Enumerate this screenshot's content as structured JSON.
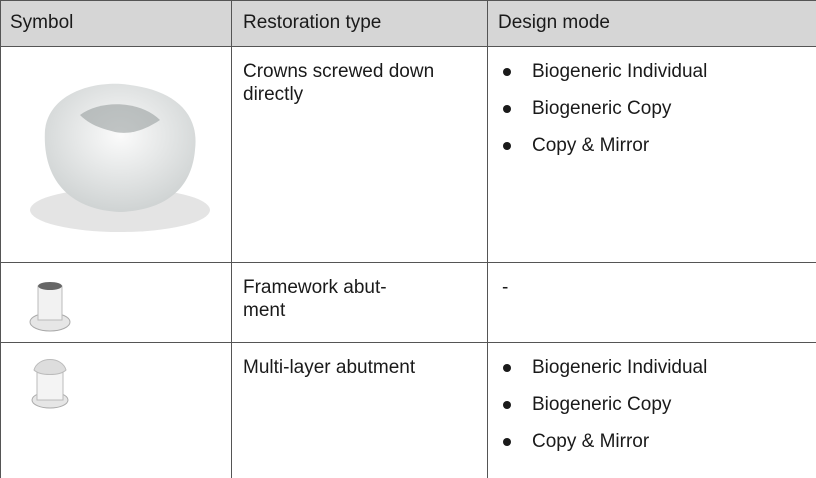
{
  "table": {
    "header": [
      "Symbol",
      "Restoration type",
      "Design mode"
    ],
    "rows": [
      {
        "restoration_type": "Crowns screwed down directly",
        "design_mode": [
          "Biogeneric Individual",
          "Biogeneric Copy",
          "Copy & Mirror"
        ]
      },
      {
        "restoration_type": "Framework abut-\nment",
        "design_mode": [
          "-"
        ]
      },
      {
        "restoration_type": "Multi-layer abutment",
        "design_mode": [
          "Biogeneric Individual",
          "Biogeneric Copy",
          "Copy & Mirror"
        ]
      }
    ]
  }
}
